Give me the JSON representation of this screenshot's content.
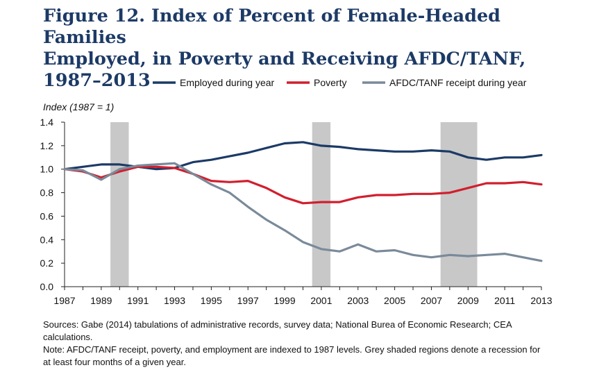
{
  "title_lines": [
    "Figure 12. Index of Percent of Female-Headed Families",
    "Employed, in Poverty and Receiving AFDC/TANF,",
    "1987–2013"
  ],
  "notes": {
    "sources": "Sources: Gabe (2014) tabulations of administrative records, survey data; National Burea of Economic Research; CEA calculations.",
    "note": "Note: AFDC/TANF receipt, poverty, and employment are indexed to 1987 levels. Grey shaded regions denote a recession for at least four months of a given year."
  },
  "chart_data": {
    "type": "line",
    "title": "Figure 12. Index of Percent of Female-Headed Families Employed, in Poverty and Receiving AFDC/TANF, 1987–2013",
    "ylabel": "Index (1987 = 1)",
    "xlabel": "",
    "xlim": [
      1987,
      2013
    ],
    "ylim": [
      0.0,
      1.4
    ],
    "x_ticks": [
      "1987",
      "1989",
      "1991",
      "1993",
      "1995",
      "1997",
      "1999",
      "2001",
      "2003",
      "2005",
      "2007",
      "2009",
      "2011",
      "2013"
    ],
    "y_ticks": [
      "0.0",
      "0.2",
      "0.4",
      "0.6",
      "0.8",
      "1.0",
      "1.2",
      "1.4"
    ],
    "grid": false,
    "legend_position": "top",
    "recession_shading": [
      [
        1989.5,
        1990.5
      ],
      [
        2000.5,
        2001.5
      ],
      [
        2007.5,
        2009.5
      ]
    ],
    "recession_color": "#c8c8c8",
    "x": [
      1987,
      1988,
      1989,
      1990,
      1991,
      1992,
      1993,
      1994,
      1995,
      1996,
      1997,
      1998,
      1999,
      2000,
      2001,
      2002,
      2003,
      2004,
      2005,
      2006,
      2007,
      2008,
      2009,
      2010,
      2011,
      2012,
      2013
    ],
    "series": [
      {
        "name": "Employed during year",
        "color": "#1c3a66",
        "values": [
          1.0,
          1.02,
          1.04,
          1.04,
          1.02,
          1.0,
          1.01,
          1.06,
          1.08,
          1.11,
          1.14,
          1.18,
          1.22,
          1.23,
          1.2,
          1.19,
          1.17,
          1.16,
          1.15,
          1.15,
          1.16,
          1.15,
          1.1,
          1.08,
          1.1,
          1.1,
          1.12
        ]
      },
      {
        "name": "Poverty",
        "color": "#d11f2e",
        "values": [
          1.0,
          0.98,
          0.93,
          0.98,
          1.02,
          1.02,
          1.01,
          0.96,
          0.9,
          0.89,
          0.9,
          0.84,
          0.76,
          0.71,
          0.72,
          0.72,
          0.76,
          0.78,
          0.78,
          0.79,
          0.79,
          0.8,
          0.84,
          0.88,
          0.88,
          0.89,
          0.87
        ]
      },
      {
        "name": "AFDC/TANF receipt during year",
        "color": "#7a8a9a",
        "values": [
          1.0,
          0.99,
          0.91,
          1.0,
          1.03,
          1.04,
          1.05,
          0.96,
          0.87,
          0.8,
          0.68,
          0.57,
          0.48,
          0.38,
          0.32,
          0.3,
          0.36,
          0.3,
          0.31,
          0.27,
          0.25,
          0.27,
          0.26,
          0.27,
          0.28,
          0.25,
          0.22
        ]
      }
    ]
  }
}
